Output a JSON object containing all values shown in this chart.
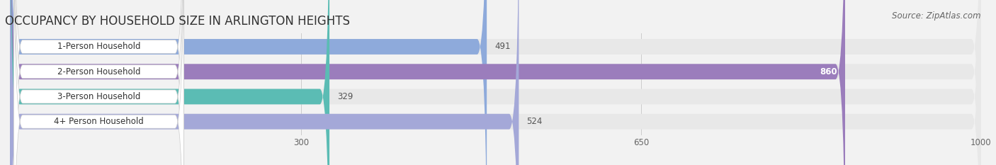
{
  "title": "OCCUPANCY BY HOUSEHOLD SIZE IN ARLINGTON HEIGHTS",
  "source": "Source: ZipAtlas.com",
  "categories": [
    "1-Person Household",
    "2-Person Household",
    "3-Person Household",
    "4+ Person Household"
  ],
  "values": [
    491,
    860,
    329,
    524
  ],
  "bar_colors": [
    "#8eaadb",
    "#9b7dbc",
    "#5bbcb4",
    "#a4a8d8"
  ],
  "bar_label_colors": [
    "#333333",
    "#ffffff",
    "#333333",
    "#333333"
  ],
  "xlim_data": [
    0,
    1000
  ],
  "xticks": [
    300,
    650,
    1000
  ],
  "background_color": "#f2f2f2",
  "bar_bg_color": "#e8e8e8",
  "title_fontsize": 12,
  "source_fontsize": 8.5,
  "label_fontsize": 8.5,
  "value_fontsize": 8.5,
  "tick_fontsize": 8.5
}
